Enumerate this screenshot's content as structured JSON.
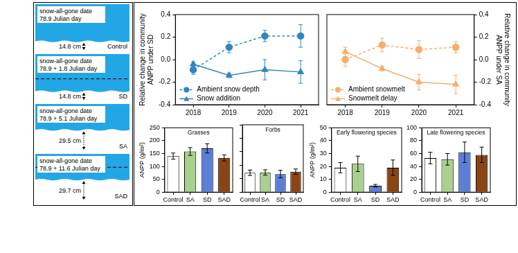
{
  "diagram": {
    "panels": [
      {
        "title": "snow-all-gone date",
        "date": "78.9 Julian day",
        "snow_depth": 14.8,
        "unit": "cm",
        "treatment": "Control",
        "dashed_line": false
      },
      {
        "title": "snow-all-gone date",
        "date": "78.9 + 1.8 Julian day",
        "snow_depth": 14.8,
        "unit": "cm",
        "treatment": "SD",
        "dashed_line": true
      },
      {
        "title": "snow-all-gone date",
        "date": "78.9 + 5.1 Julian day",
        "snow_depth": 29.5,
        "unit": "cm",
        "treatment": "SA",
        "dashed_line": false
      },
      {
        "title": "snow-all-gone date",
        "date": "78.9 + 11.6 Julian day",
        "snow_depth": 29.7,
        "unit": "cm",
        "treatment": "SAD",
        "dashed_line": true
      }
    ]
  },
  "chart_data": [
    {
      "type": "line",
      "y_label": [
        "Relative change in community",
        "ANPP under SD"
      ],
      "categories": [
        "2018",
        "2019",
        "2020",
        "2021"
      ],
      "ylim": [
        -0.4,
        0.4
      ],
      "yticks": [
        -0.4,
        -0.2,
        {
          "value": 0,
          "label": "0.0"
        },
        0.2,
        0.4
      ],
      "legend": "lower left",
      "series": [
        {
          "name": "Ambient snow depth",
          "color": "#2e86c1",
          "marker": "circle",
          "line_style": "dashed",
          "values": [
            -0.09,
            0.11,
            0.21,
            0.21
          ],
          "errors": [
            0.04,
            0.05,
            0.05,
            0.1
          ]
        },
        {
          "name": "Snow addition",
          "color": "#2e86c1",
          "marker": "triangle",
          "line_style": "solid",
          "values": [
            -0.04,
            -0.14,
            -0.09,
            -0.11
          ],
          "errors": [
            0.02,
            0.02,
            0.09,
            0.1
          ]
        }
      ]
    },
    {
      "type": "line",
      "y_label": [
        "Relative change in community",
        "ANPP under SA"
      ],
      "categories": [
        "2018",
        "2019",
        "2020",
        "2021"
      ],
      "y2lim": [
        -0.4,
        0.4
      ],
      "y2ticks": [
        -0.4,
        -0.2,
        {
          "value": 0,
          "label": "0.0"
        },
        0.2,
        0.4
      ],
      "legend": "lower left",
      "series": [
        {
          "name": "Ambient snowmelt",
          "color": "#f5ae6b",
          "marker": "circle",
          "line_style": "dashed",
          "axis": "y2",
          "values": [
            0.0,
            0.13,
            0.09,
            0.11
          ],
          "errors": [
            0.06,
            0.06,
            0.08,
            0.05
          ]
        },
        {
          "name": "Snowmelt delay",
          "color": "#f5ae6b",
          "marker": "triangle",
          "line_style": "solid",
          "axis": "y2",
          "values": [
            0.07,
            -0.08,
            -0.2,
            -0.22
          ],
          "errors": [
            0.04,
            0.02,
            0.07,
            0.08
          ]
        }
      ]
    },
    {
      "type": "bar",
      "title": "Grasses",
      "y_label": "ANPP (g/m²)",
      "categories": [
        "Control",
        "SA",
        "SD",
        "SAD"
      ],
      "values": [
        140,
        158,
        170,
        133
      ],
      "errors": [
        12,
        15,
        18,
        12
      ],
      "colors": [
        "#ffffff",
        "#a9d18e",
        "#5b7fd6",
        "#8b4513"
      ],
      "ylim": [
        0,
        250
      ],
      "yticks": [
        0,
        50,
        100,
        150,
        200,
        250
      ]
    },
    {
      "type": "bar",
      "title": "Forbs",
      "categories": [
        "Control",
        "SA",
        "SD",
        "SAD"
      ],
      "values": [
        72,
        73,
        67,
        76
      ],
      "errors": [
        10,
        10,
        14,
        10
      ],
      "colors": [
        "#ffffff",
        "#a9d18e",
        "#5b7fd6",
        "#8b4513"
      ],
      "ylim": [
        0,
        250
      ],
      "yticks": [
        0,
        50,
        100,
        150,
        200,
        250
      ],
      "tick_labels": "x"
    },
    {
      "type": "bar",
      "title": "Early flowering species",
      "y_label": "ANPP (g/m²)",
      "categories": [
        "Control",
        "SA",
        "SD",
        "SAD"
      ],
      "values": [
        19,
        22,
        5,
        19
      ],
      "errors": [
        4,
        6,
        1,
        6
      ],
      "colors": [
        "#ffffff",
        "#a9d18e",
        "#5b7fd6",
        "#8b4513"
      ],
      "ylim": [
        0,
        50
      ],
      "yticks": [
        0,
        10,
        20,
        30,
        40,
        50
      ]
    },
    {
      "type": "bar",
      "title": "Late flowering species",
      "categories": [
        "Control",
        "SA",
        "SD",
        "SAD"
      ],
      "values": [
        53,
        51,
        62,
        58
      ],
      "errors": [
        9,
        9,
        16,
        12
      ],
      "colors": [
        "#ffffff",
        "#a9d18e",
        "#5b7fd6",
        "#8b4513"
      ],
      "ylim": [
        0,
        100
      ],
      "yticks": [
        0,
        20,
        40,
        60,
        80,
        100
      ]
    }
  ]
}
